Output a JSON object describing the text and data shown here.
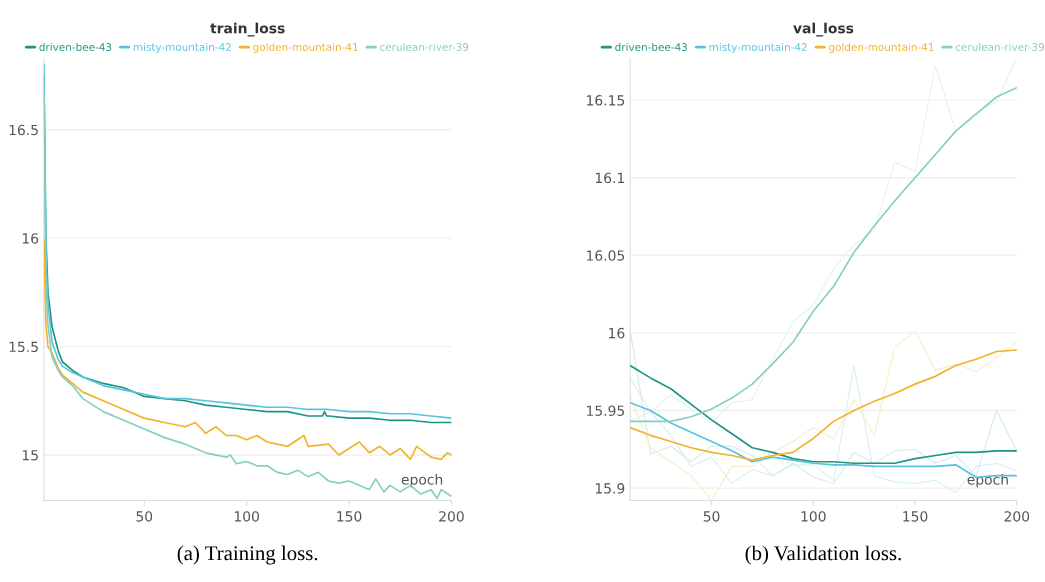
{
  "chart_data": [
    {
      "type": "line",
      "title": "train_loss",
      "xlabel": "epoch",
      "annotations": [
        "(a) Training loss."
      ],
      "legend": "top",
      "grid": "y",
      "marker": "none",
      "line_style": "solid",
      "xlim": [
        1,
        200
      ],
      "ylim": [
        14.79,
        16.83
      ],
      "xticks": [
        50,
        100,
        150,
        200
      ],
      "yticks": [
        15,
        15.5,
        16,
        16.5
      ],
      "series": [
        {
          "name": "driven-bee-43",
          "color": "#1f9484",
          "x": [
            1,
            2,
            3,
            5,
            8,
            10,
            15,
            20,
            30,
            40,
            50,
            60,
            70,
            80,
            90,
            100,
            110,
            120,
            130,
            137,
            138,
            139,
            140,
            150,
            160,
            170,
            180,
            190,
            200
          ],
          "values": [
            16.75,
            16.0,
            15.75,
            15.59,
            15.48,
            15.43,
            15.39,
            15.36,
            15.33,
            15.31,
            15.27,
            15.26,
            15.25,
            15.23,
            15.22,
            15.21,
            15.2,
            15.2,
            15.18,
            15.18,
            15.2,
            15.18,
            15.18,
            15.17,
            15.17,
            15.16,
            15.16,
            15.15,
            15.15
          ]
        },
        {
          "name": "misty-mountain-42",
          "color": "#58c4dc",
          "x": [
            1,
            2,
            3,
            5,
            8,
            10,
            15,
            20,
            30,
            40,
            50,
            60,
            70,
            80,
            90,
            100,
            110,
            120,
            130,
            140,
            150,
            160,
            170,
            180,
            190,
            200
          ],
          "values": [
            16.8,
            15.9,
            15.7,
            15.52,
            15.44,
            15.41,
            15.38,
            15.36,
            15.32,
            15.3,
            15.28,
            15.26,
            15.26,
            15.25,
            15.24,
            15.23,
            15.22,
            15.22,
            15.21,
            15.21,
            15.2,
            15.2,
            15.19,
            15.19,
            15.18,
            15.17
          ]
        },
        {
          "name": "golden-mountain-41",
          "color": "#f0b32a",
          "x": [
            1,
            2,
            3,
            5,
            8,
            10,
            15,
            20,
            30,
            40,
            50,
            60,
            70,
            75,
            80,
            85,
            90,
            95,
            100,
            105,
            110,
            120,
            128,
            130,
            140,
            145,
            150,
            155,
            160,
            165,
            170,
            175,
            180,
            183,
            190,
            195,
            198,
            200
          ],
          "values": [
            16.0,
            15.6,
            15.5,
            15.47,
            15.4,
            15.37,
            15.33,
            15.29,
            15.25,
            15.21,
            15.17,
            15.15,
            15.13,
            15.15,
            15.1,
            15.13,
            15.09,
            15.09,
            15.07,
            15.09,
            15.06,
            15.04,
            15.09,
            15.04,
            15.05,
            15.0,
            15.03,
            15.06,
            15.01,
            15.04,
            15.0,
            15.03,
            14.98,
            15.04,
            14.99,
            14.98,
            15.01,
            15.0
          ]
        },
        {
          "name": "cerulean-river-39",
          "color": "#86cfbe",
          "x": [
            1,
            2,
            3,
            5,
            8,
            10,
            15,
            20,
            30,
            40,
            50,
            60,
            70,
            80,
            90,
            92,
            95,
            100,
            105,
            110,
            115,
            120,
            125,
            130,
            135,
            140,
            145,
            150,
            155,
            160,
            163,
            167,
            170,
            175,
            180,
            185,
            190,
            193,
            195,
            200
          ],
          "values": [
            16.7,
            15.8,
            15.6,
            15.45,
            15.39,
            15.36,
            15.32,
            15.26,
            15.2,
            15.16,
            15.12,
            15.08,
            15.05,
            15.01,
            14.99,
            15.0,
            14.96,
            14.97,
            14.95,
            14.95,
            14.92,
            14.91,
            14.93,
            14.9,
            14.92,
            14.88,
            14.87,
            14.88,
            14.86,
            14.84,
            14.89,
            14.83,
            14.86,
            14.83,
            14.86,
            14.82,
            14.84,
            14.8,
            14.84,
            14.81
          ]
        }
      ]
    },
    {
      "type": "line",
      "title": "val_loss",
      "xlabel": "epoch",
      "annotations": [
        "(b) Validation loss."
      ],
      "legend": "top",
      "grid": "y",
      "marker": "none",
      "line_style": "solid",
      "xlim": [
        10,
        200
      ],
      "ylim": [
        15.892,
        16.177
      ],
      "xticks": [
        50,
        100,
        150,
        200
      ],
      "yticks": [
        15.9,
        15.95,
        16,
        16.05,
        16.1,
        16.15
      ],
      "x": [
        10,
        20,
        30,
        40,
        50,
        60,
        70,
        80,
        90,
        100,
        110,
        120,
        130,
        140,
        150,
        160,
        170,
        180,
        190,
        200
      ],
      "series": [
        {
          "color": "#d3ece8",
          "values": [
            16.002,
            15.922,
            15.927,
            15.917,
            15.927,
            15.927,
            15.921,
            15.908,
            15.916,
            15.907,
            15.903,
            15.923,
            15.916,
            15.924,
            15.925,
            15.916,
            15.921,
            15.908,
            15.95,
            15.924
          ]
        },
        {
          "color": "#d5eff5",
          "values": [
            15.971,
            15.949,
            15.934,
            15.914,
            15.92,
            15.903,
            15.912,
            15.908,
            15.915,
            15.915,
            15.905,
            15.979,
            15.908,
            15.904,
            15.903,
            15.905,
            15.897,
            15.914,
            15.916,
            15.911
          ]
        },
        {
          "color": "#fcebc6",
          "values": [
            15.959,
            15.926,
            15.917,
            15.908,
            15.892,
            15.914,
            15.914,
            15.923,
            15.93,
            15.939,
            15.932,
            15.957,
            15.934,
            15.991,
            16.001,
            15.976,
            15.98,
            15.975,
            15.984,
            15.994
          ]
        },
        {
          "color": "#e3f3ef",
          "values": [
            15.943,
            15.949,
            15.96,
            15.951,
            15.942,
            15.955,
            15.957,
            15.983,
            16.007,
            16.018,
            16.041,
            16.057,
            16.066,
            16.11,
            16.104,
            16.172,
            16.13,
            16.142,
            16.149,
            16.177
          ]
        },
        {
          "name": "driven-bee-43",
          "color": "#1f9484",
          "values": [
            15.979,
            15.971,
            15.964,
            15.954,
            15.944,
            15.935,
            15.926,
            15.923,
            15.919,
            15.917,
            15.917,
            15.916,
            15.916,
            15.916,
            15.919,
            15.921,
            15.923,
            15.923,
            15.924,
            15.924
          ]
        },
        {
          "name": "misty-mountain-42",
          "color": "#58c4dc",
          "values": [
            15.955,
            15.95,
            15.942,
            15.936,
            15.93,
            15.924,
            15.917,
            15.92,
            15.918,
            15.916,
            15.915,
            15.915,
            15.914,
            15.914,
            15.914,
            15.914,
            15.915,
            15.907,
            15.908,
            15.908
          ]
        },
        {
          "name": "golden-mountain-41",
          "color": "#f0b32a",
          "values": [
            15.939,
            15.934,
            15.93,
            15.926,
            15.923,
            15.921,
            15.918,
            15.921,
            15.923,
            15.932,
            15.943,
            15.95,
            15.956,
            15.961,
            15.967,
            15.972,
            15.979,
            15.983,
            15.988,
            15.989
          ]
        },
        {
          "name": "cerulean-river-39",
          "color": "#86cfbe",
          "values": [
            15.943,
            15.943,
            15.943,
            15.946,
            15.951,
            15.958,
            15.967,
            15.98,
            15.994,
            16.014,
            16.03,
            16.052,
            16.069,
            16.085,
            16.1,
            16.115,
            16.13,
            16.141,
            16.152,
            16.158
          ]
        }
      ]
    }
  ]
}
